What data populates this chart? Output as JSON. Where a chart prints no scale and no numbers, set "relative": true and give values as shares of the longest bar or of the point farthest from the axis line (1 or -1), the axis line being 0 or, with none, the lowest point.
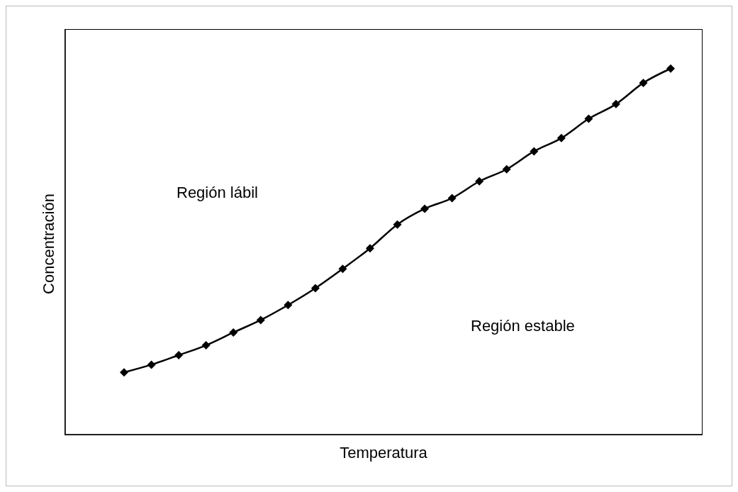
{
  "chart_data": {
    "type": "line",
    "xlabel": "Temperatura",
    "ylabel": "Concentración",
    "relative": true,
    "marker": "diamond",
    "line_style": "solid",
    "categories": [
      null,
      null,
      null,
      null,
      null,
      null,
      null,
      null,
      null,
      null,
      null,
      null,
      null,
      null,
      null,
      null,
      null,
      null,
      null,
      null,
      null
    ],
    "series": [
      {
        "color": "#000000",
        "values": [
          0.17,
          0.191,
          0.217,
          0.244,
          0.279,
          0.313,
          0.354,
          0.4,
          0.453,
          0.509,
          0.574,
          0.617,
          0.646,
          0.692,
          0.725,
          0.774,
          0.81,
          0.863,
          0.903,
          0.961,
          1
        ]
      }
    ],
    "annotations": [
      "Región lábil",
      "Región estable"
    ]
  }
}
